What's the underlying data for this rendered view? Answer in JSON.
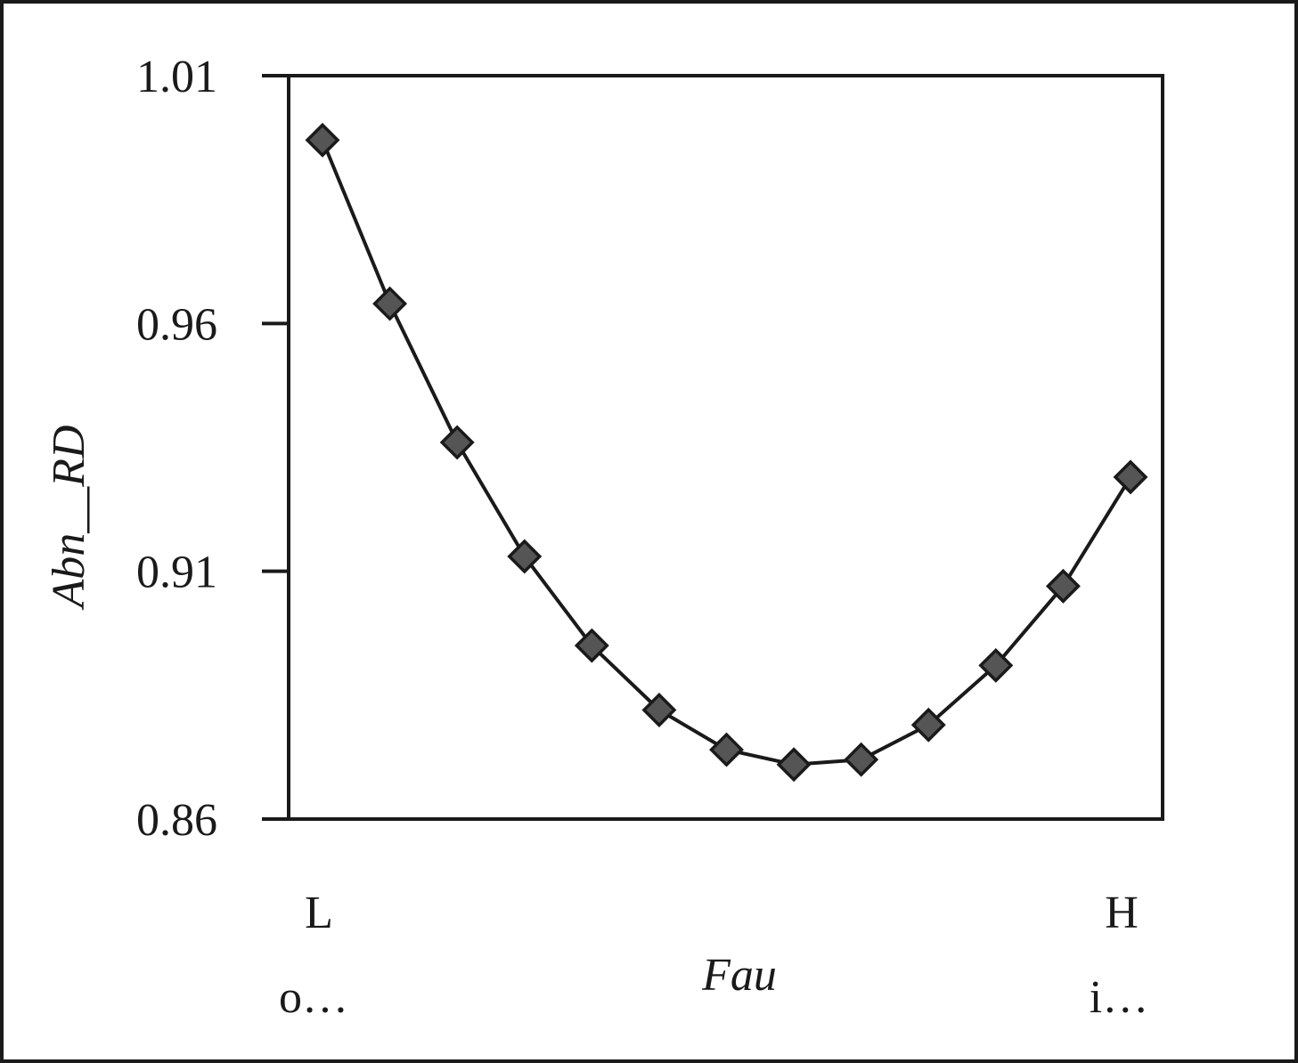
{
  "chart_data": {
    "type": "line",
    "title": "",
    "xlabel": "Fau",
    "ylabel": "Abn__RD",
    "ylim": [
      0.86,
      1.01
    ],
    "y_ticks": [
      "1.01",
      "0.96",
      "0.91",
      "0.86"
    ],
    "x_end_labels": {
      "left": "L",
      "left_sub": "o…",
      "right": "H",
      "right_sub": "i…"
    },
    "grid": false,
    "legend": "none",
    "series": [
      {
        "marker": "diamond",
        "marker_color": "#555555",
        "line_color": "#1a1a1a",
        "x": [
          1,
          2,
          3,
          4,
          5,
          6,
          7,
          8,
          9,
          10,
          11,
          12,
          13
        ],
        "values": [
          0.997,
          0.964,
          0.936,
          0.913,
          0.895,
          0.882,
          0.874,
          0.871,
          0.872,
          0.879,
          0.891,
          0.907,
          0.929
        ]
      }
    ]
  }
}
